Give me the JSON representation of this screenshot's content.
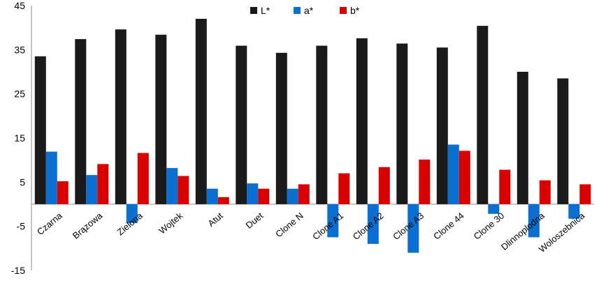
{
  "chart_data": {
    "type": "bar",
    "categories": [
      "Czarna",
      "Brązowa",
      "Zielona",
      "Wojtek",
      "Atut",
      "Duet",
      "Clone N",
      "Clone A1",
      "Clone A2",
      "Clone A3",
      "Clone 44",
      "Clone 30",
      "Dlinnoplodna",
      "Woloszebnica"
    ],
    "series": [
      {
        "name": "L*",
        "color": "#1a1a1a",
        "values": [
          33.5,
          37.4,
          39.6,
          38.4,
          42.0,
          35.9,
          34.3,
          35.9,
          37.6,
          36.4,
          35.5,
          40.4,
          30.0,
          28.5
        ]
      },
      {
        "name": "a*",
        "color": "#0a6fd1",
        "values": [
          11.9,
          6.6,
          -4.3,
          8.2,
          3.5,
          4.7,
          3.5,
          -7.5,
          -9.0,
          -11.0,
          13.5,
          -2.2,
          -7.5,
          -3.3
        ]
      },
      {
        "name": "b*",
        "color": "#d90000",
        "values": [
          5.2,
          9.1,
          11.6,
          6.4,
          1.6,
          3.5,
          4.5,
          7.0,
          8.4,
          10.1,
          12.1,
          7.8,
          5.4,
          4.5
        ]
      }
    ],
    "y_ticks": [
      "45",
      "35",
      "25",
      "15",
      "5",
      "-5",
      "-15"
    ],
    "ylim": [
      -15,
      45
    ],
    "legend_position": "top",
    "grid": false
  }
}
